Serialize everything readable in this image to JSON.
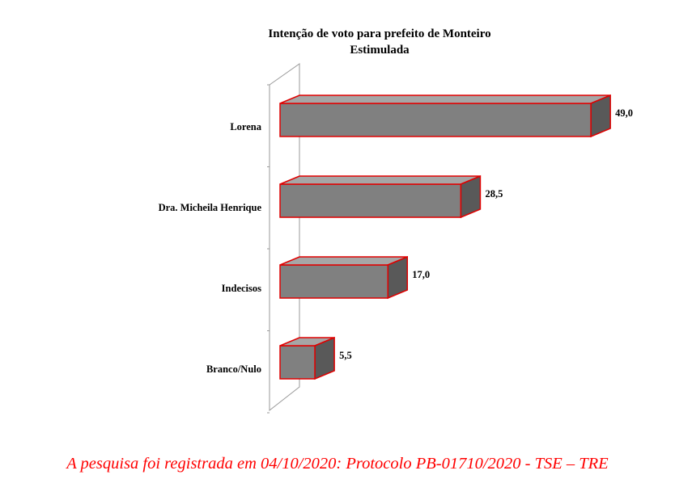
{
  "chart_data": {
    "type": "bar",
    "orientation": "horizontal",
    "style": "3d",
    "title": "Intenção de voto para prefeito de Monteiro",
    "subtitle": "Estimulada",
    "categories": [
      "Lorena",
      "Dra. Micheila Henrique",
      "Indecisos",
      "Branco/Nulo"
    ],
    "values": [
      49.0,
      28.5,
      17.0,
      5.5
    ],
    "value_labels": [
      "49,0",
      "28,5",
      "17,0",
      "5,5"
    ],
    "xlim": [
      0,
      50
    ],
    "grid": false,
    "legend": "none",
    "colors": {
      "bar_front": "#808080",
      "bar_top": "#a6a6a6",
      "bar_side": "#595959",
      "bar_outline": "#e00000"
    }
  },
  "footnote": "A pesquisa foi registrada em 04/10/2020: Protocolo PB-01710/2020 - TSE – TRE"
}
